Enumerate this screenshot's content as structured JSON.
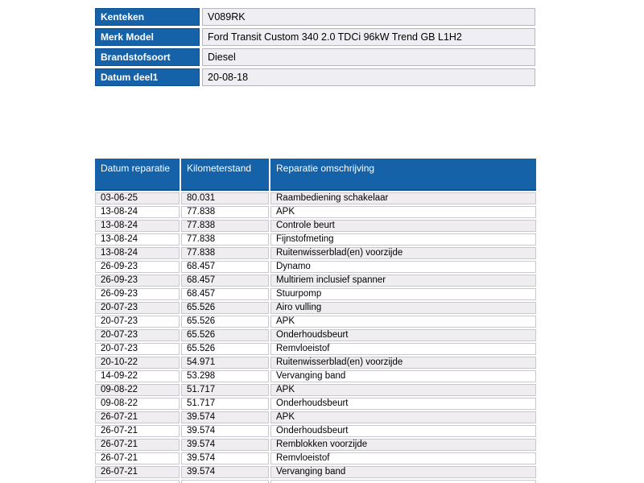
{
  "colors": {
    "header_blue": "#1562A8",
    "header_blue_border": "#0D4F92",
    "alt_row": "#EFEDF0",
    "cell_border": "#C8C7CD",
    "info_value_bg": "#EFEEF2",
    "info_value_border": "#B7B6BE"
  },
  "vehicle_info": {
    "rows": [
      {
        "label": "Kenteken",
        "value": "V089RK"
      },
      {
        "label": "Merk Model",
        "value": "Ford Transit Custom 340 2.0 TDCi 96kW Trend GB L1H2"
      },
      {
        "label": "Brandstofsoort",
        "value": "Diesel"
      },
      {
        "label": "Datum deel1",
        "value": "20-08-18"
      }
    ]
  },
  "repair_history": {
    "columns": [
      "Datum reparatie",
      "Kilometerstand",
      "Reparatie omschrijving"
    ],
    "rows": [
      [
        "03-06-25",
        "80.031",
        "Raambediening schakelaar"
      ],
      [
        "13-08-24",
        "77.838",
        "APK"
      ],
      [
        "13-08-24",
        "77.838",
        "Controle beurt"
      ],
      [
        "13-08-24",
        "77.838",
        "Fijnstofmeting"
      ],
      [
        "13-08-24",
        "77.838",
        "Ruitenwisserblad(en) voorzijde"
      ],
      [
        "26-09-23",
        "68.457",
        "Dynamo"
      ],
      [
        "26-09-23",
        "68.457",
        "Multiriem inclusief spanner"
      ],
      [
        "26-09-23",
        "68.457",
        "Stuurpomp"
      ],
      [
        "20-07-23",
        "65.526",
        "Airo vulling"
      ],
      [
        "20-07-23",
        "65.526",
        "APK"
      ],
      [
        "20-07-23",
        "65.526",
        "Onderhoudsbeurt"
      ],
      [
        "20-07-23",
        "65.526",
        "Remvloeistof"
      ],
      [
        "20-10-22",
        "54.971",
        "Ruitenwisserblad(en) voorzijde"
      ],
      [
        "14-09-22",
        "53.298",
        "Vervanging band"
      ],
      [
        "09-08-22",
        "51.717",
        "APK"
      ],
      [
        "09-08-22",
        "51.717",
        "Onderhoudsbeurt"
      ],
      [
        "26-07-21",
        "39.574",
        "APK"
      ],
      [
        "26-07-21",
        "39.574",
        "Onderhoudsbeurt"
      ],
      [
        "26-07-21",
        "39.574",
        "Remblokken voorzijde"
      ],
      [
        "26-07-21",
        "39.574",
        "Remvloeistof"
      ],
      [
        "26-07-21",
        "39.574",
        "Vervanging band"
      ]
    ],
    "partial_row_visible": true
  }
}
